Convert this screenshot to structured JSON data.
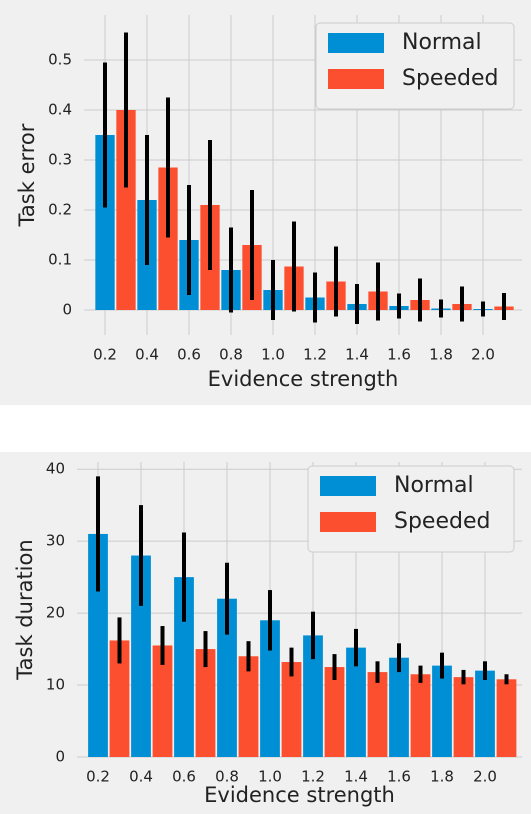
{
  "chart_data": [
    {
      "type": "bar",
      "xlabel": "Evidence strength",
      "ylabel": "Task error",
      "categories": [
        "0.2",
        "0.4",
        "0.6",
        "0.8",
        "1.0",
        "1.2",
        "1.4",
        "1.6",
        "1.8",
        "2.0"
      ],
      "series": [
        {
          "name": "Normal",
          "color": "#008fd5",
          "values": [
            0.35,
            0.22,
            0.14,
            0.08,
            0.04,
            0.025,
            0.012,
            0.008,
            0.003,
            0.002
          ],
          "errors": [
            0.145,
            0.13,
            0.11,
            0.085,
            0.06,
            0.05,
            0.04,
            0.025,
            0.018,
            0.015
          ]
        },
        {
          "name": "Speeded",
          "color": "#fc4f30",
          "values": [
            0.4,
            0.285,
            0.21,
            0.13,
            0.087,
            0.057,
            0.037,
            0.02,
            0.012,
            0.007
          ],
          "errors": [
            0.155,
            0.14,
            0.13,
            0.11,
            0.09,
            0.07,
            0.058,
            0.043,
            0.035,
            0.027
          ]
        }
      ],
      "ylim": [
        -0.05,
        0.59
      ],
      "yticks": [
        0.0,
        0.1,
        0.2,
        0.3,
        0.4,
        0.5
      ],
      "grid": true,
      "legend": "upper right"
    },
    {
      "type": "bar",
      "xlabel": "Evidence strength",
      "ylabel": "Task duration",
      "categories": [
        "0.2",
        "0.4",
        "0.6",
        "0.8",
        "1.0",
        "1.2",
        "1.4",
        "1.6",
        "1.8",
        "2.0"
      ],
      "series": [
        {
          "name": "Normal",
          "color": "#008fd5",
          "values": [
            31,
            28,
            25,
            22,
            19,
            16.9,
            15.2,
            13.8,
            12.7,
            12
          ],
          "errors": [
            8,
            7,
            6.2,
            5,
            4.2,
            3.3,
            2.6,
            2,
            1.8,
            1.3
          ]
        },
        {
          "name": "Speeded",
          "color": "#fc4f30",
          "values": [
            16.2,
            15.5,
            15,
            14,
            13.2,
            12.5,
            11.8,
            11.5,
            11.1,
            10.8
          ],
          "errors": [
            3.2,
            2.7,
            2.5,
            2.1,
            2,
            1.8,
            1.5,
            1.2,
            1,
            0.7
          ]
        }
      ],
      "ylim": [
        0,
        41
      ],
      "yticks": [
        0,
        10,
        20,
        30,
        40
      ],
      "grid": true,
      "legend": "upper right"
    }
  ]
}
